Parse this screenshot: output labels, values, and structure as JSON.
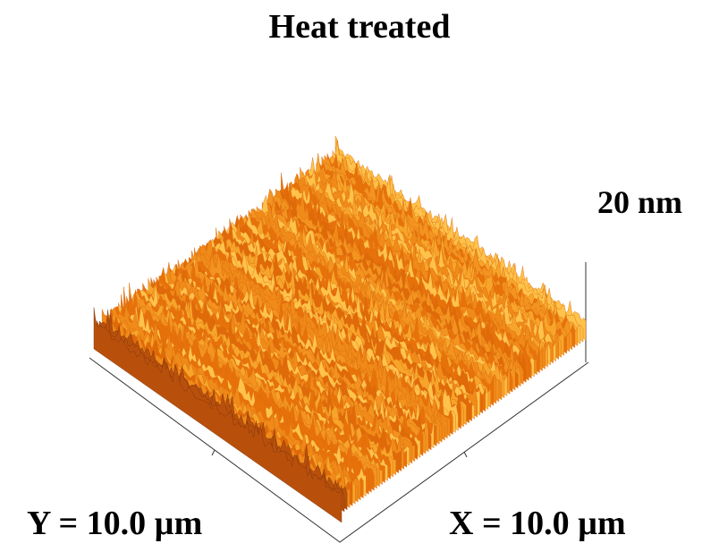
{
  "title": "Heat treated",
  "z_scale_label": "20 nm",
  "y_axis_label": "Y = 10.0 µm",
  "x_axis_label": "X = 10.0 µm"
}
